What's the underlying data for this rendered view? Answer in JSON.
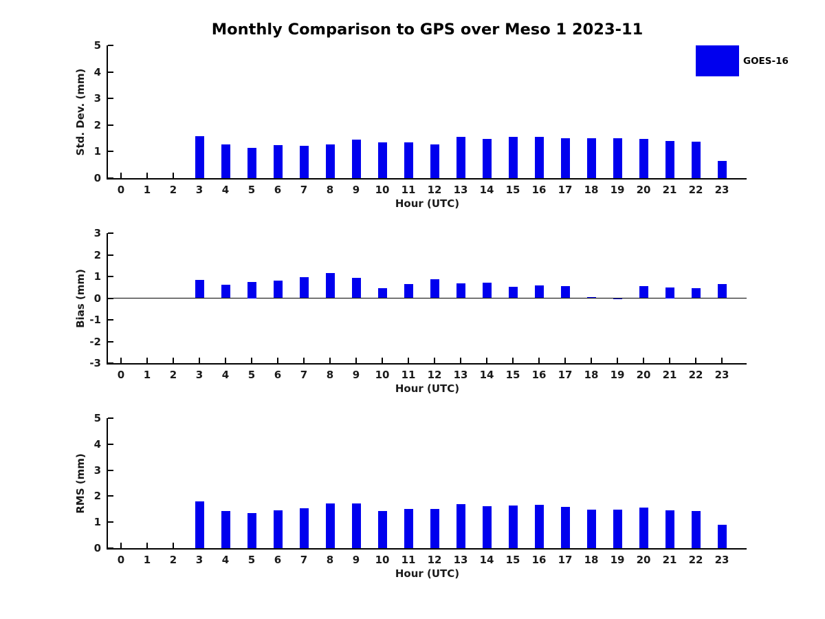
{
  "figure": {
    "title": "Monthly Comparison to GPS over Meso 1 2023-11",
    "bar_color": "#0000ee",
    "axis_color": "#000000",
    "text_color": "#1a1a1a"
  },
  "legend": {
    "label": "GOES-16",
    "swatch_color": "#0000ee"
  },
  "chart_data": [
    {
      "type": "bar",
      "title": "Std. Dev. subplot",
      "ylabel": "Std. Dev. (mm)",
      "xlabel": "Hour (UTC)",
      "legend_entry": "GOES-16",
      "categories": [
        "0",
        "1",
        "2",
        "3",
        "4",
        "5",
        "6",
        "7",
        "8",
        "9",
        "10",
        "11",
        "12",
        "13",
        "14",
        "15",
        "16",
        "17",
        "18",
        "19",
        "20",
        "21",
        "22",
        "23"
      ],
      "values": [
        0,
        0,
        0,
        1.58,
        1.27,
        1.15,
        1.24,
        1.21,
        1.27,
        1.44,
        1.36,
        1.35,
        1.26,
        1.55,
        1.47,
        1.55,
        1.55,
        1.51,
        1.5,
        1.51,
        1.48,
        1.4,
        1.37,
        0.65
      ],
      "ylim": [
        0,
        5
      ],
      "yticks": [
        0,
        1,
        2,
        3,
        4,
        5
      ],
      "grid": false,
      "zero_line": false
    },
    {
      "type": "bar",
      "title": "Bias subplot",
      "ylabel": "Bias (mm)",
      "xlabel": "Hour (UTC)",
      "legend_entry": "GOES-16",
      "categories": [
        "0",
        "1",
        "2",
        "3",
        "4",
        "5",
        "6",
        "7",
        "8",
        "9",
        "10",
        "11",
        "12",
        "13",
        "14",
        "15",
        "16",
        "17",
        "18",
        "19",
        "20",
        "21",
        "22",
        "23"
      ],
      "values": [
        0,
        0,
        0,
        0.85,
        0.62,
        0.75,
        0.8,
        0.97,
        1.15,
        0.95,
        0.47,
        0.66,
        0.86,
        0.67,
        0.71,
        0.52,
        0.58,
        0.55,
        0.04,
        -0.04,
        0.56,
        0.5,
        0.45,
        0.66
      ],
      "ylim": [
        -3,
        3
      ],
      "yticks": [
        -3,
        -2,
        -1,
        0,
        1,
        2,
        3
      ],
      "grid": false,
      "zero_line": true
    },
    {
      "type": "bar",
      "title": "RMS subplot",
      "ylabel": "RMS (mm)",
      "xlabel": "Hour (UTC)",
      "legend_entry": "GOES-16",
      "categories": [
        "0",
        "1",
        "2",
        "3",
        "4",
        "5",
        "6",
        "7",
        "8",
        "9",
        "10",
        "11",
        "12",
        "13",
        "14",
        "15",
        "16",
        "17",
        "18",
        "19",
        "20",
        "21",
        "22",
        "23"
      ],
      "values": [
        0,
        0,
        0,
        1.8,
        1.44,
        1.36,
        1.45,
        1.54,
        1.72,
        1.71,
        1.43,
        1.51,
        1.51,
        1.68,
        1.62,
        1.63,
        1.67,
        1.58,
        1.48,
        1.49,
        1.56,
        1.46,
        1.43,
        0.91
      ],
      "ylim": [
        0,
        5
      ],
      "yticks": [
        0,
        1,
        2,
        3,
        4,
        5
      ],
      "grid": false,
      "zero_line": false
    }
  ]
}
